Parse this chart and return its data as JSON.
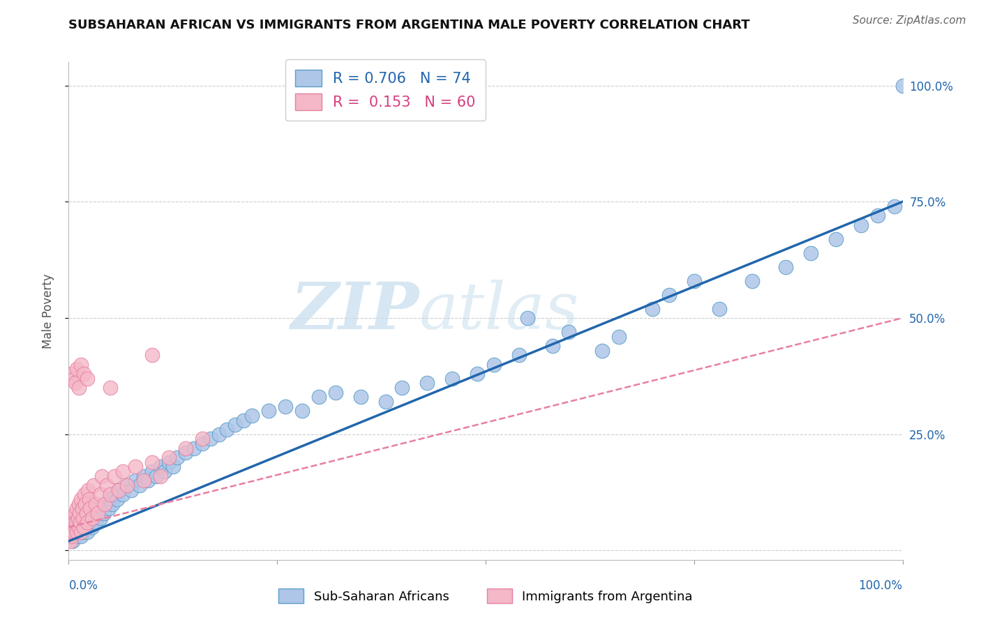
{
  "title": "SUBSAHARAN AFRICAN VS IMMIGRANTS FROM ARGENTINA MALE POVERTY CORRELATION CHART",
  "source": "Source: ZipAtlas.com",
  "ylabel": "Male Poverty",
  "color_blue_fill": "#aec6e8",
  "color_blue_edge": "#5b9ec9",
  "color_pink_fill": "#f4b8c8",
  "color_pink_edge": "#e87fa0",
  "color_blue_line": "#2166ac",
  "color_pink_line": "#e87fa0",
  "color_blue_text": "#2166ac",
  "color_pink_text": "#d63e80",
  "background_color": "#ffffff",
  "grid_color": "#cccccc",
  "R_blue": 0.706,
  "N_blue": 74,
  "R_pink": 0.153,
  "N_pink": 60,
  "legend_label_blue": "Sub-Saharan Africans",
  "legend_label_pink": "Immigrants from Argentina",
  "xlim": [
    0.0,
    1.0
  ],
  "ylim": [
    -0.02,
    1.05
  ],
  "ytick_values": [
    0.0,
    0.25,
    0.5,
    0.75,
    1.0
  ],
  "ytick_labels": [
    "",
    "25.0%",
    "50.0%",
    "75.0%",
    "100.0%"
  ],
  "blue_x": [
    0.005,
    0.01,
    0.015,
    0.018,
    0.02,
    0.022,
    0.025,
    0.028,
    0.03,
    0.032,
    0.035,
    0.038,
    0.04,
    0.042,
    0.045,
    0.048,
    0.05,
    0.052,
    0.055,
    0.058,
    0.06,
    0.065,
    0.07,
    0.075,
    0.08,
    0.085,
    0.09,
    0.095,
    0.1,
    0.105,
    0.11,
    0.115,
    0.12,
    0.125,
    0.13,
    0.14,
    0.15,
    0.16,
    0.17,
    0.18,
    0.19,
    0.2,
    0.21,
    0.22,
    0.24,
    0.26,
    0.28,
    0.3,
    0.32,
    0.35,
    0.38,
    0.4,
    0.43,
    0.46,
    0.49,
    0.51,
    0.54,
    0.58,
    0.6,
    0.64,
    0.66,
    0.7,
    0.72,
    0.75,
    0.78,
    0.82,
    0.86,
    0.89,
    0.92,
    0.95,
    0.97,
    0.99,
    1.0,
    0.55
  ],
  "blue_y": [
    0.02,
    0.03,
    0.03,
    0.04,
    0.05,
    0.04,
    0.06,
    0.05,
    0.07,
    0.06,
    0.08,
    0.07,
    0.09,
    0.08,
    0.1,
    0.09,
    0.11,
    0.1,
    0.12,
    0.11,
    0.13,
    0.12,
    0.14,
    0.13,
    0.15,
    0.14,
    0.16,
    0.15,
    0.17,
    0.16,
    0.18,
    0.17,
    0.19,
    0.18,
    0.2,
    0.21,
    0.22,
    0.23,
    0.24,
    0.25,
    0.26,
    0.27,
    0.28,
    0.29,
    0.3,
    0.31,
    0.3,
    0.33,
    0.34,
    0.33,
    0.32,
    0.35,
    0.36,
    0.37,
    0.38,
    0.4,
    0.42,
    0.44,
    0.47,
    0.43,
    0.46,
    0.52,
    0.55,
    0.58,
    0.52,
    0.58,
    0.61,
    0.64,
    0.67,
    0.7,
    0.72,
    0.74,
    1.0,
    0.5
  ],
  "pink_x": [
    0.002,
    0.003,
    0.004,
    0.005,
    0.005,
    0.006,
    0.006,
    0.007,
    0.008,
    0.008,
    0.009,
    0.01,
    0.01,
    0.011,
    0.012,
    0.012,
    0.013,
    0.014,
    0.015,
    0.015,
    0.016,
    0.017,
    0.018,
    0.019,
    0.02,
    0.021,
    0.022,
    0.023,
    0.025,
    0.026,
    0.028,
    0.03,
    0.032,
    0.035,
    0.038,
    0.04,
    0.043,
    0.046,
    0.05,
    0.055,
    0.06,
    0.065,
    0.07,
    0.08,
    0.09,
    0.1,
    0.11,
    0.12,
    0.14,
    0.16,
    0.004,
    0.006,
    0.008,
    0.01,
    0.012,
    0.015,
    0.018,
    0.022,
    0.05,
    0.1
  ],
  "pink_y": [
    0.02,
    0.03,
    0.04,
    0.05,
    0.06,
    0.07,
    0.04,
    0.06,
    0.05,
    0.08,
    0.06,
    0.04,
    0.09,
    0.07,
    0.05,
    0.1,
    0.08,
    0.06,
    0.04,
    0.11,
    0.09,
    0.07,
    0.05,
    0.12,
    0.1,
    0.08,
    0.06,
    0.13,
    0.11,
    0.09,
    0.07,
    0.14,
    0.1,
    0.08,
    0.12,
    0.16,
    0.1,
    0.14,
    0.12,
    0.16,
    0.13,
    0.17,
    0.14,
    0.18,
    0.15,
    0.19,
    0.16,
    0.2,
    0.22,
    0.24,
    0.38,
    0.37,
    0.36,
    0.39,
    0.35,
    0.4,
    0.38,
    0.37,
    0.35,
    0.42
  ],
  "blue_line_x0": 0.0,
  "blue_line_y0": 0.02,
  "blue_line_x1": 1.0,
  "blue_line_y1": 0.75,
  "pink_line_x0": 0.0,
  "pink_line_y0": 0.05,
  "pink_line_x1": 1.0,
  "pink_line_y1": 0.5
}
